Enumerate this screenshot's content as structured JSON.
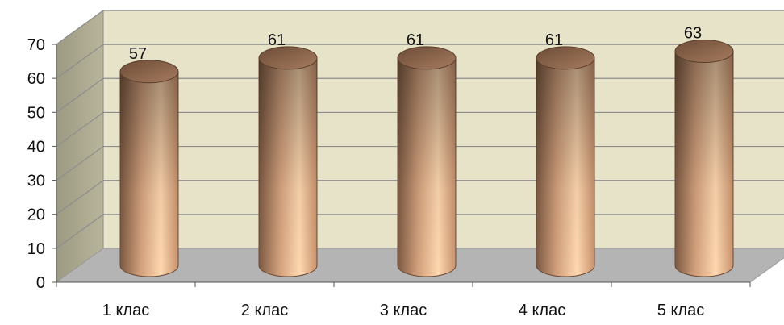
{
  "chart_data": {
    "type": "bar",
    "style": "3d-cylinder",
    "categories": [
      "1 клас",
      "2 клас",
      "3 клас",
      "4 клас",
      "5 клас"
    ],
    "series": [
      {
        "values": [
          57,
          61,
          61,
          61,
          63
        ]
      }
    ],
    "ylim": [
      0,
      70
    ],
    "yticks": [
      0,
      10,
      20,
      30,
      40,
      50,
      60,
      70
    ],
    "grid": true,
    "legend": "none",
    "colors": {
      "back_wall": "#e7e3c9",
      "side_wall": "#a9a68c",
      "floor": "#b4b4b4",
      "gridline": "#8c8c8c",
      "bar_light": "#ffd8b0",
      "bar_dark": "#7d5a43",
      "bar_top": "#8a6650"
    }
  }
}
